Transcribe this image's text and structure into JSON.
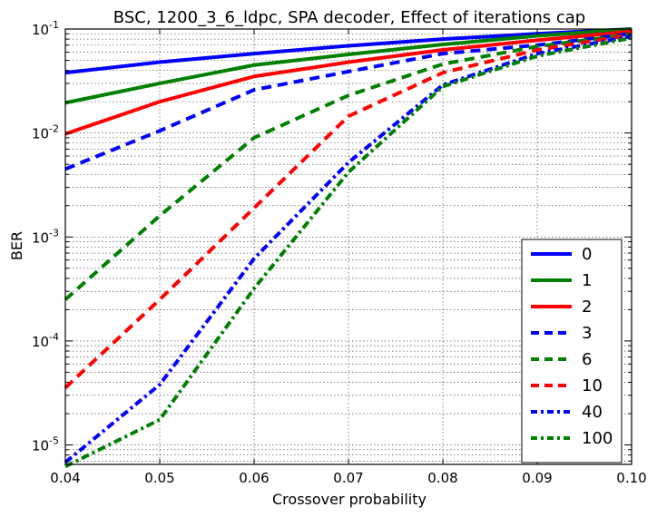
{
  "chart_data": {
    "type": "line",
    "title": "BSC, 1200_3_6_ldpc, SPA decoder, Effect of iterations cap",
    "xlabel": "Crossover probability",
    "ylabel": "BER",
    "xlim": [
      0.04,
      0.1
    ],
    "ylim": [
      6.5e-06,
      0.1
    ],
    "yscale": "log",
    "grid": true,
    "legend_position": "lower-right",
    "x_ticks": [
      {
        "value": 0.04,
        "label": "0.04"
      },
      {
        "value": 0.05,
        "label": "0.05"
      },
      {
        "value": 0.06,
        "label": "0.06"
      },
      {
        "value": 0.07,
        "label": "0.07"
      },
      {
        "value": 0.08,
        "label": "0.08"
      },
      {
        "value": 0.09,
        "label": "0.09"
      },
      {
        "value": 0.1,
        "label": "0.10"
      }
    ],
    "y_ticks": [
      {
        "value": 0.1,
        "base": "10",
        "exp": "-1"
      },
      {
        "value": 0.01,
        "base": "10",
        "exp": "-2"
      },
      {
        "value": 0.001,
        "base": "10",
        "exp": "-3"
      },
      {
        "value": 0.0001,
        "base": "10",
        "exp": "-4"
      },
      {
        "value": 1e-05,
        "base": "10",
        "exp": "-5"
      }
    ],
    "x": [
      0.04,
      0.05,
      0.06,
      0.07,
      0.08,
      0.09,
      0.1
    ],
    "series": [
      {
        "name": "0",
        "color": "#0000ff",
        "dash": "solid",
        "values": [
          0.038,
          0.048,
          0.058,
          0.069,
          0.08,
          0.09,
          0.1
        ]
      },
      {
        "name": "1",
        "color": "#008000",
        "dash": "solid",
        "values": [
          0.0195,
          0.03,
          0.045,
          0.057,
          0.071,
          0.086,
          0.1
        ]
      },
      {
        "name": "2",
        "color": "#ff0000",
        "dash": "solid",
        "values": [
          0.0098,
          0.02,
          0.035,
          0.048,
          0.063,
          0.078,
          0.095
        ]
      },
      {
        "name": "3",
        "color": "#0000ff",
        "dash": "dashed",
        "values": [
          0.0045,
          0.0105,
          0.026,
          0.039,
          0.058,
          0.07,
          0.09
        ]
      },
      {
        "name": "6",
        "color": "#008000",
        "dash": "dashed",
        "values": [
          0.00025,
          0.0016,
          0.009,
          0.023,
          0.046,
          0.068,
          0.089
        ]
      },
      {
        "name": "10",
        "color": "#ff0000",
        "dash": "dashed",
        "values": [
          3.55e-05,
          0.00025,
          0.0019,
          0.0145,
          0.038,
          0.063,
          0.088
        ]
      },
      {
        "name": "40",
        "color": "#0000ff",
        "dash": "dashdot",
        "values": [
          6.8e-06,
          3.8e-05,
          0.00062,
          0.0052,
          0.029,
          0.058,
          0.085
        ]
      },
      {
        "name": "100",
        "color": "#008000",
        "dash": "dashdot",
        "values": [
          6.2e-06,
          1.75e-05,
          0.00032,
          0.0042,
          0.028,
          0.055,
          0.082
        ]
      }
    ]
  }
}
